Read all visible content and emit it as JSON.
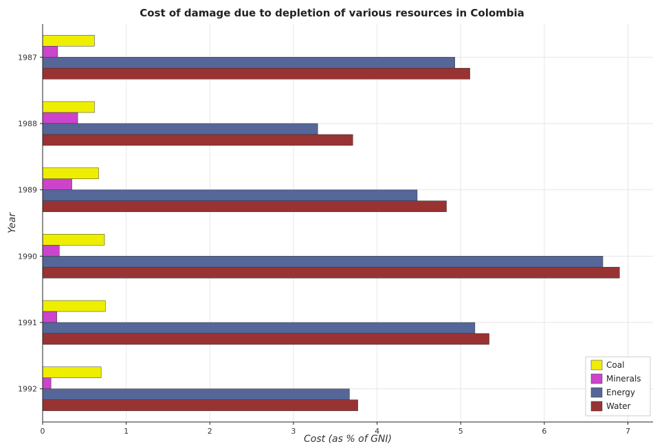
{
  "chart_data": {
    "type": "bar",
    "orientation": "horizontal",
    "title": "Cost of damage due to depletion of various resources in Colombia",
    "xlabel": "Cost (as % of GNI)",
    "ylabel": "Year",
    "xlim": [
      0,
      7.3
    ],
    "xticks": [
      "0",
      "1",
      "2",
      "3",
      "4",
      "5",
      "6",
      "7"
    ],
    "grid": true,
    "legend_position": "bottom-right",
    "categories": [
      "1987",
      "1988",
      "1989",
      "1990",
      "1991",
      "1992"
    ],
    "series": [
      {
        "name": "Coal",
        "color": "#eeee00",
        "values": [
          0.62,
          0.62,
          0.67,
          0.74,
          0.75,
          0.7
        ]
      },
      {
        "name": "Minerals",
        "color": "#cc44cc",
        "values": [
          0.18,
          0.42,
          0.35,
          0.2,
          0.17,
          0.1
        ]
      },
      {
        "name": "Energy",
        "color": "#556699",
        "values": [
          4.93,
          3.29,
          4.48,
          6.7,
          5.17,
          3.67
        ]
      },
      {
        "name": "Water",
        "color": "#993333",
        "values": [
          5.11,
          3.71,
          4.83,
          6.9,
          5.34,
          3.77
        ]
      }
    ]
  }
}
